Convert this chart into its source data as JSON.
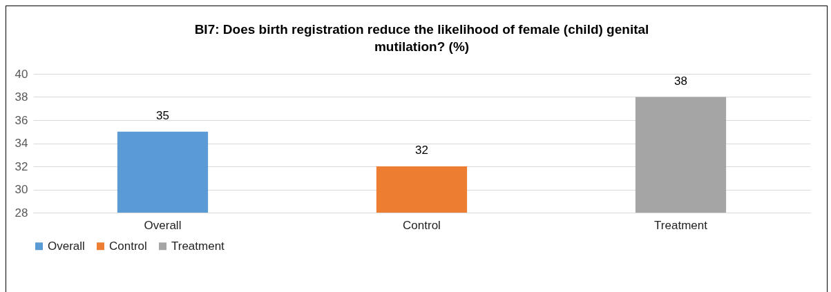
{
  "chart_data": {
    "type": "bar",
    "title": "BI7: Does birth registration reduce the likelihood of female (child) genital mutilation? (%)",
    "categories": [
      "Overall",
      "Control",
      "Treatment"
    ],
    "series": [
      {
        "name": "Overall",
        "color": "#5b9bd5",
        "values": [
          35,
          null,
          null
        ]
      },
      {
        "name": "Control",
        "color": "#ed7d31",
        "values": [
          null,
          32,
          null
        ]
      },
      {
        "name": "Treatment",
        "color": "#a5a5a5",
        "values": [
          null,
          null,
          38
        ]
      }
    ],
    "ylim": [
      28,
      40
    ],
    "yticks": [
      28,
      30,
      32,
      34,
      36,
      38,
      40
    ],
    "grid": "y",
    "legend": "bottom",
    "data_labels": true
  }
}
